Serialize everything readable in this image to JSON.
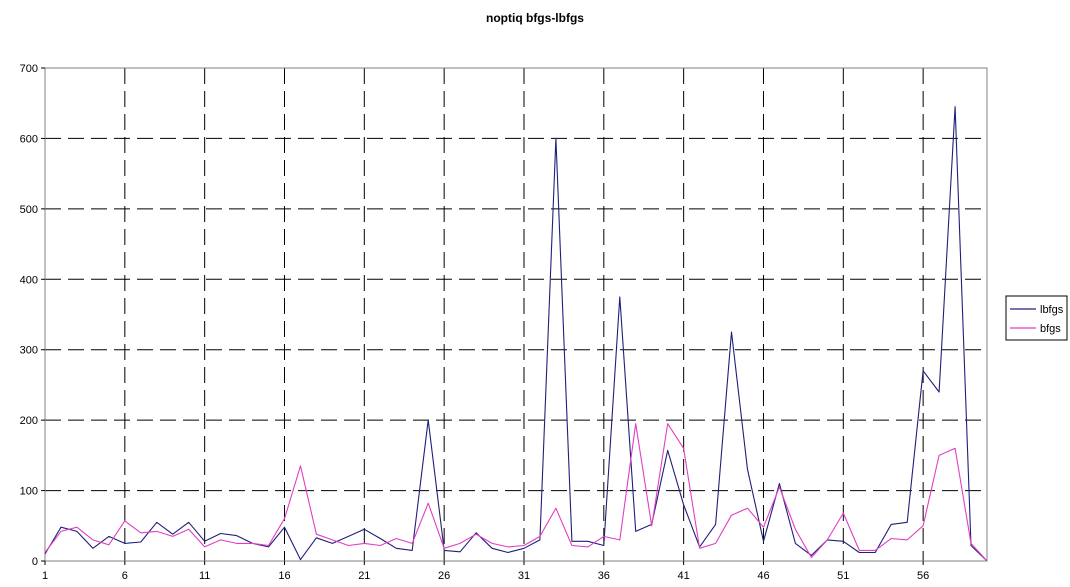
{
  "chart_data": {
    "type": "line",
    "title": "noptiq bfgs-lbfgs",
    "xlabel": "",
    "ylabel": "",
    "x": [
      1,
      2,
      3,
      4,
      5,
      6,
      7,
      8,
      9,
      10,
      11,
      12,
      13,
      14,
      15,
      16,
      17,
      18,
      19,
      20,
      21,
      22,
      23,
      24,
      25,
      26,
      27,
      28,
      29,
      30,
      31,
      32,
      33,
      34,
      35,
      36,
      37,
      38,
      39,
      40,
      41,
      42,
      43,
      44,
      45,
      46,
      47,
      48,
      49,
      50,
      51,
      52,
      53,
      54,
      55,
      56,
      57,
      58,
      59,
      60
    ],
    "x_tick_labels": [
      "1",
      "6",
      "11",
      "16",
      "21",
      "26",
      "31",
      "36",
      "41",
      "46",
      "51",
      "56"
    ],
    "ylim": [
      0,
      700
    ],
    "y_ticks": [
      0,
      100,
      200,
      300,
      400,
      500,
      600,
      700
    ],
    "grid": true,
    "legend_position": "right",
    "series": [
      {
        "name": "lbfgs",
        "color": "#1f1f7a",
        "values": [
          10,
          48,
          42,
          18,
          35,
          25,
          27,
          55,
          38,
          55,
          28,
          39,
          36,
          25,
          20,
          48,
          2,
          33,
          25,
          35,
          45,
          32,
          18,
          15,
          200,
          15,
          13,
          40,
          18,
          12,
          18,
          30,
          600,
          28,
          28,
          22,
          375,
          42,
          52,
          157,
          80,
          20,
          52,
          325,
          130,
          28,
          110,
          25,
          8,
          30,
          28,
          12,
          12,
          52,
          55,
          270,
          240,
          645,
          22,
          0
        ]
      },
      {
        "name": "bfgs",
        "color": "#e040c0",
        "values": [
          12,
          42,
          48,
          30,
          23,
          57,
          40,
          42,
          35,
          45,
          20,
          30,
          25,
          25,
          22,
          60,
          135,
          38,
          30,
          22,
          25,
          22,
          32,
          25,
          82,
          18,
          25,
          38,
          25,
          20,
          22,
          35,
          75,
          22,
          20,
          35,
          30,
          195,
          50,
          195,
          160,
          18,
          25,
          65,
          75,
          48,
          105,
          45,
          5,
          30,
          68,
          15,
          15,
          32,
          30,
          50,
          150,
          160,
          25,
          0
        ]
      }
    ]
  }
}
